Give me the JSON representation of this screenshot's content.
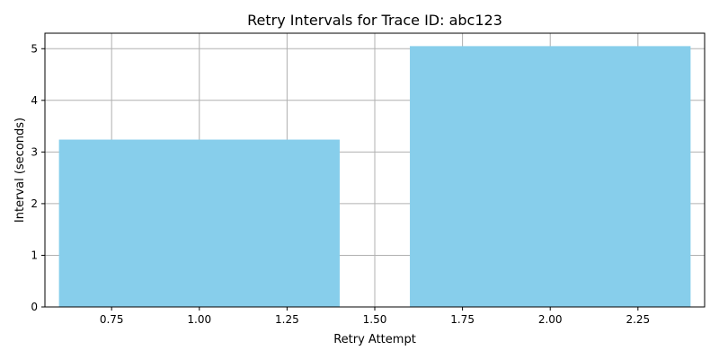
{
  "chart_data": {
    "type": "bar",
    "title": "Retry Intervals for Trace ID: abc123",
    "xlabel": "Retry Attempt",
    "ylabel": "Interval (seconds)",
    "x": [
      1,
      2
    ],
    "values": [
      3.24,
      5.05
    ],
    "bar_width": 0.8,
    "bar_color": "#87ceeb",
    "xlim": [
      0.56,
      2.44
    ],
    "ylim": [
      0,
      5.3
    ],
    "xticks": [
      "0.75",
      "1.00",
      "1.25",
      "1.50",
      "1.75",
      "2.00",
      "2.25"
    ],
    "yticks": [
      "0",
      "1",
      "2",
      "3",
      "4",
      "5"
    ],
    "grid": true
  }
}
